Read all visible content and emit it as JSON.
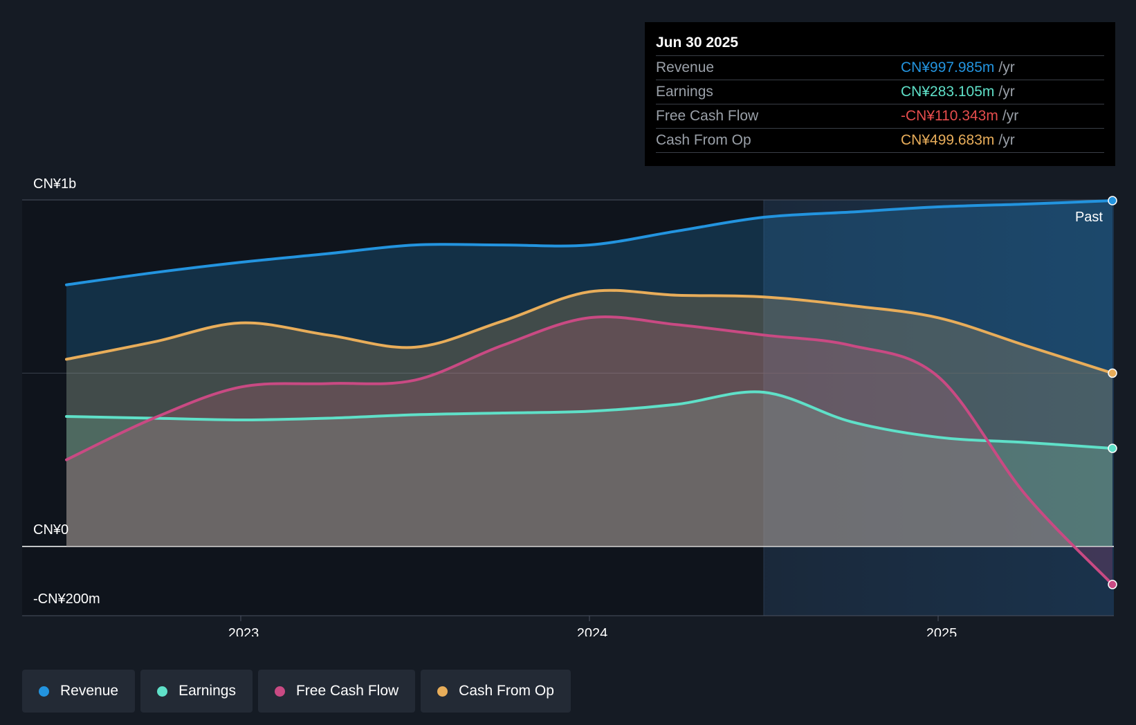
{
  "chart_data": {
    "type": "area",
    "y_axis_labels": [
      "CN¥1b",
      "CN¥0",
      "-CN¥200m"
    ],
    "ylim": [
      -200,
      1000
    ],
    "y_unit": "CN¥m",
    "x_ticks": [
      "2023",
      "2024",
      "2025"
    ],
    "past_label": "Past",
    "x": [
      2022.5,
      2022.75,
      2023.0,
      2023.25,
      2023.5,
      2023.75,
      2024.0,
      2024.25,
      2024.5,
      2024.75,
      2025.0,
      2025.25,
      2025.5
    ],
    "series": [
      {
        "name": "Revenue",
        "color": "#2394df",
        "values": [
          755,
          790,
          820,
          845,
          870,
          870,
          870,
          910,
          950,
          965,
          980,
          988,
          998
        ]
      },
      {
        "name": "Earnings",
        "color": "#5fe0c8",
        "values": [
          375,
          370,
          365,
          370,
          380,
          385,
          390,
          410,
          445,
          360,
          315,
          300,
          283
        ]
      },
      {
        "name": "Free Cash Flow",
        "color": "#c94a83",
        "values": [
          250,
          370,
          460,
          470,
          480,
          580,
          660,
          640,
          610,
          580,
          490,
          150,
          -110
        ]
      },
      {
        "name": "Cash From Op",
        "color": "#e8ad5a",
        "values": [
          540,
          590,
          645,
          610,
          575,
          650,
          735,
          725,
          720,
          695,
          660,
          580,
          500
        ]
      }
    ]
  },
  "tooltip": {
    "date": "Jun 30 2025",
    "rows": [
      {
        "name": "Revenue",
        "value": "CN¥997.985m",
        "unit": "/yr",
        "color": "#2394df"
      },
      {
        "name": "Earnings",
        "value": "CN¥283.105m",
        "unit": "/yr",
        "color": "#5fe0c8"
      },
      {
        "name": "Free Cash Flow",
        "value": "-CN¥110.343m",
        "unit": "/yr",
        "color": "#e64d4d"
      },
      {
        "name": "Cash From Op",
        "value": "CN¥499.683m",
        "unit": "/yr",
        "color": "#e8ad5a"
      }
    ]
  },
  "legend": [
    {
      "label": "Revenue",
      "color": "#2394df"
    },
    {
      "label": "Earnings",
      "color": "#5fe0c8"
    },
    {
      "label": "Free Cash Flow",
      "color": "#c94a83"
    },
    {
      "label": "Cash From Op",
      "color": "#e8ad5a"
    }
  ]
}
